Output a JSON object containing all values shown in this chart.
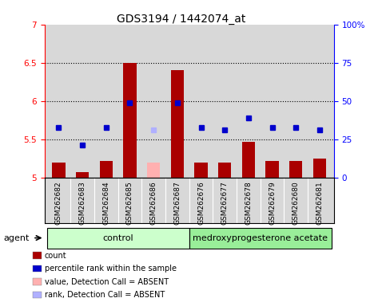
{
  "title": "GDS3194 / 1442074_at",
  "samples": [
    "GSM262682",
    "GSM262683",
    "GSM262684",
    "GSM262685",
    "GSM262686",
    "GSM262687",
    "GSM262676",
    "GSM262677",
    "GSM262678",
    "GSM262679",
    "GSM262680",
    "GSM262681"
  ],
  "bar_values": [
    5.2,
    5.07,
    5.22,
    6.5,
    null,
    6.4,
    5.2,
    5.2,
    5.47,
    5.22,
    5.22,
    5.25
  ],
  "bar_absent": [
    null,
    null,
    null,
    null,
    5.2,
    null,
    null,
    null,
    null,
    null,
    null,
    null
  ],
  "dot_values": [
    5.65,
    5.42,
    5.65,
    5.98,
    null,
    5.98,
    5.65,
    5.62,
    5.78,
    5.65,
    5.65,
    5.62
  ],
  "dot_absent": [
    null,
    null,
    null,
    null,
    5.62,
    null,
    null,
    null,
    null,
    null,
    null,
    null
  ],
  "bar_color": "#aa0000",
  "bar_absent_color": "#ffb0b0",
  "dot_color": "#0000cc",
  "dot_absent_color": "#b0b0ff",
  "ylim": [
    5.0,
    7.0
  ],
  "yticks_left": [
    5.0,
    5.5,
    6.0,
    6.5,
    7.0
  ],
  "yticks_right": [
    0,
    25,
    50,
    75,
    100
  ],
  "ytick_labels_left": [
    "5",
    "5.5",
    "6",
    "6.5",
    "7"
  ],
  "ytick_labels_right": [
    "0",
    "25",
    "50",
    "75",
    "100%"
  ],
  "dotted_lines": [
    5.5,
    6.0,
    6.5
  ],
  "group1_label": "control",
  "group2_label": "medroxyprogesterone acetate",
  "group1_indices": [
    0,
    1,
    2,
    3,
    4,
    5
  ],
  "group2_indices": [
    6,
    7,
    8,
    9,
    10,
    11
  ],
  "group1_color": "#ccffcc",
  "group2_color": "#99ee99",
  "agent_label": "agent",
  "legend_items": [
    {
      "label": "count",
      "color": "#aa0000"
    },
    {
      "label": "percentile rank within the sample",
      "color": "#0000cc"
    },
    {
      "label": "value, Detection Call = ABSENT",
      "color": "#ffb0b0"
    },
    {
      "label": "rank, Detection Call = ABSENT",
      "color": "#b0b0ff"
    }
  ],
  "background_color": "#ffffff",
  "plot_bg_color": "#d8d8d8",
  "title_fontsize": 10,
  "tick_fontsize": 7.5
}
